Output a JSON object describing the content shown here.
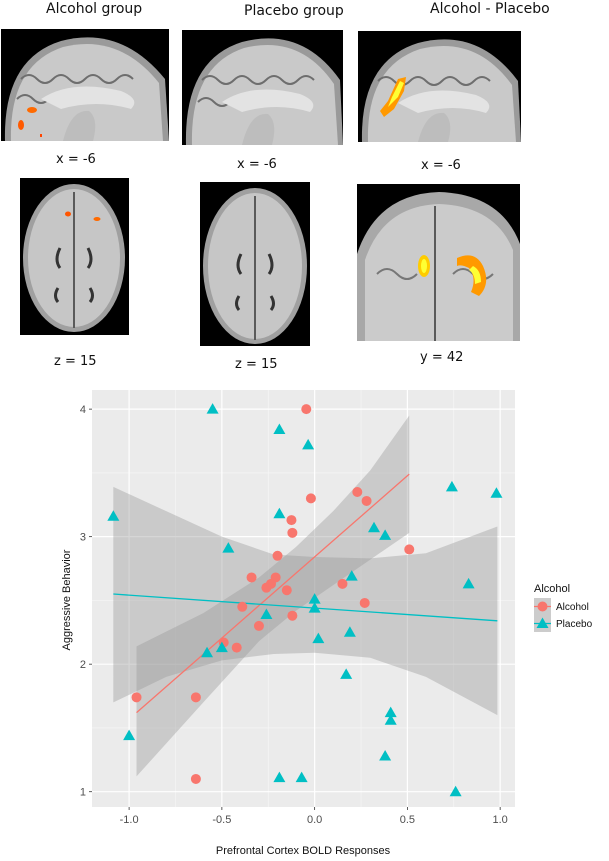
{
  "figure": {
    "panels": [
      {
        "title": "Alcohol group",
        "sagittal_label": "x = -6",
        "axial_label": "z = 15",
        "axial_view": "axial"
      },
      {
        "title": "Placebo group",
        "sagittal_label": "x = -6",
        "axial_label": "z = 15",
        "axial_view": "axial"
      },
      {
        "title": "Alcohol - Placebo",
        "sagittal_label": "x = -6",
        "axial_label": "y = 42",
        "axial_view": "coronal"
      }
    ],
    "activation_colors": {
      "low": "#ff4500",
      "mid": "#ff8c00",
      "high": "#ffff33"
    }
  },
  "chart_data": {
    "type": "scatter",
    "title": "",
    "xlabel": "Prefrontal Cortex BOLD Responses",
    "ylabel": "Aggressive Behavior",
    "xlim": [
      -1.2,
      1.08
    ],
    "ylim": [
      0.88,
      4.15
    ],
    "xticks": [
      -1.0,
      -0.5,
      0.0,
      0.5,
      1.0
    ],
    "xtick_labels": [
      "-1.0",
      "-0.5",
      "0.0",
      "0.5",
      "1.0"
    ],
    "yticks": [
      1,
      2,
      3,
      4
    ],
    "ytick_labels": [
      "1",
      "2",
      "3",
      "4"
    ],
    "grid": true,
    "panel_background": "#EBEBEB",
    "legend": {
      "title": "Alcohol",
      "position": "right",
      "entries": [
        {
          "label": "Alcohol",
          "shape": "circle",
          "color": "#F8766D"
        },
        {
          "label": "Placebo",
          "shape": "triangle",
          "color": "#00BFC4"
        }
      ]
    },
    "series": [
      {
        "name": "Alcohol",
        "shape": "circle",
        "color": "#F8766D",
        "points": [
          [
            -0.045,
            4.0
          ],
          [
            -0.02,
            3.3
          ],
          [
            0.23,
            3.35
          ],
          [
            0.28,
            3.28
          ],
          [
            -0.125,
            3.13
          ],
          [
            -0.12,
            3.03
          ],
          [
            0.51,
            2.9
          ],
          [
            -0.2,
            2.85
          ],
          [
            -0.34,
            2.68
          ],
          [
            -0.21,
            2.68
          ],
          [
            -0.235,
            2.63
          ],
          [
            -0.26,
            2.6
          ],
          [
            -0.15,
            2.58
          ],
          [
            0.15,
            2.63
          ],
          [
            0.27,
            2.48
          ],
          [
            -0.39,
            2.45
          ],
          [
            -0.12,
            2.38
          ],
          [
            -0.3,
            2.3
          ],
          [
            -0.49,
            2.17
          ],
          [
            -0.42,
            2.13
          ],
          [
            -0.96,
            1.74
          ],
          [
            -0.64,
            1.74
          ],
          [
            -0.64,
            1.1
          ]
        ],
        "fit_line": [
          [
            -0.96,
            1.62
          ],
          [
            0.51,
            3.49
          ]
        ],
        "ci_band": {
          "x": [
            -0.96,
            -0.6,
            -0.3,
            -0.1,
            0.1,
            0.3,
            0.51
          ],
          "upper": [
            2.14,
            2.4,
            2.68,
            2.92,
            3.2,
            3.52,
            3.95
          ],
          "lower": [
            1.12,
            1.7,
            2.18,
            2.42,
            2.62,
            2.82,
            3.03
          ]
        }
      },
      {
        "name": "Placebo",
        "shape": "triangle",
        "color": "#00BFC4",
        "points": [
          [
            -0.55,
            4.0
          ],
          [
            -0.19,
            3.84
          ],
          [
            -0.035,
            3.72
          ],
          [
            0.74,
            3.39
          ],
          [
            0.98,
            3.34
          ],
          [
            -0.19,
            3.18
          ],
          [
            -1.085,
            3.16
          ],
          [
            0.32,
            3.07
          ],
          [
            0.38,
            3.01
          ],
          [
            -0.465,
            2.91
          ],
          [
            0.2,
            2.69
          ],
          [
            0.83,
            2.63
          ],
          [
            0.0,
            2.51
          ],
          [
            0.0,
            2.44
          ],
          [
            -0.26,
            2.39
          ],
          [
            0.19,
            2.25
          ],
          [
            0.02,
            2.2
          ],
          [
            -0.5,
            2.13
          ],
          [
            -0.58,
            2.09
          ],
          [
            0.17,
            1.92
          ],
          [
            0.41,
            1.62
          ],
          [
            0.41,
            1.56
          ],
          [
            -1.0,
            1.44
          ],
          [
            0.38,
            1.28
          ],
          [
            -0.19,
            1.11
          ],
          [
            -0.07,
            1.11
          ],
          [
            0.76,
            1.0
          ]
        ],
        "fit_line": [
          [
            -1.085,
            2.55
          ],
          [
            0.985,
            2.34
          ]
        ],
        "ci_band": {
          "x": [
            -1.085,
            -0.8,
            -0.5,
            -0.22,
            0.0,
            0.3,
            0.6,
            0.985
          ],
          "upper": [
            3.39,
            3.2,
            3.0,
            2.86,
            2.84,
            2.83,
            2.87,
            3.08
          ],
          "lower": [
            1.7,
            1.9,
            2.03,
            2.08,
            2.09,
            2.05,
            1.9,
            1.6
          ]
        }
      }
    ]
  }
}
